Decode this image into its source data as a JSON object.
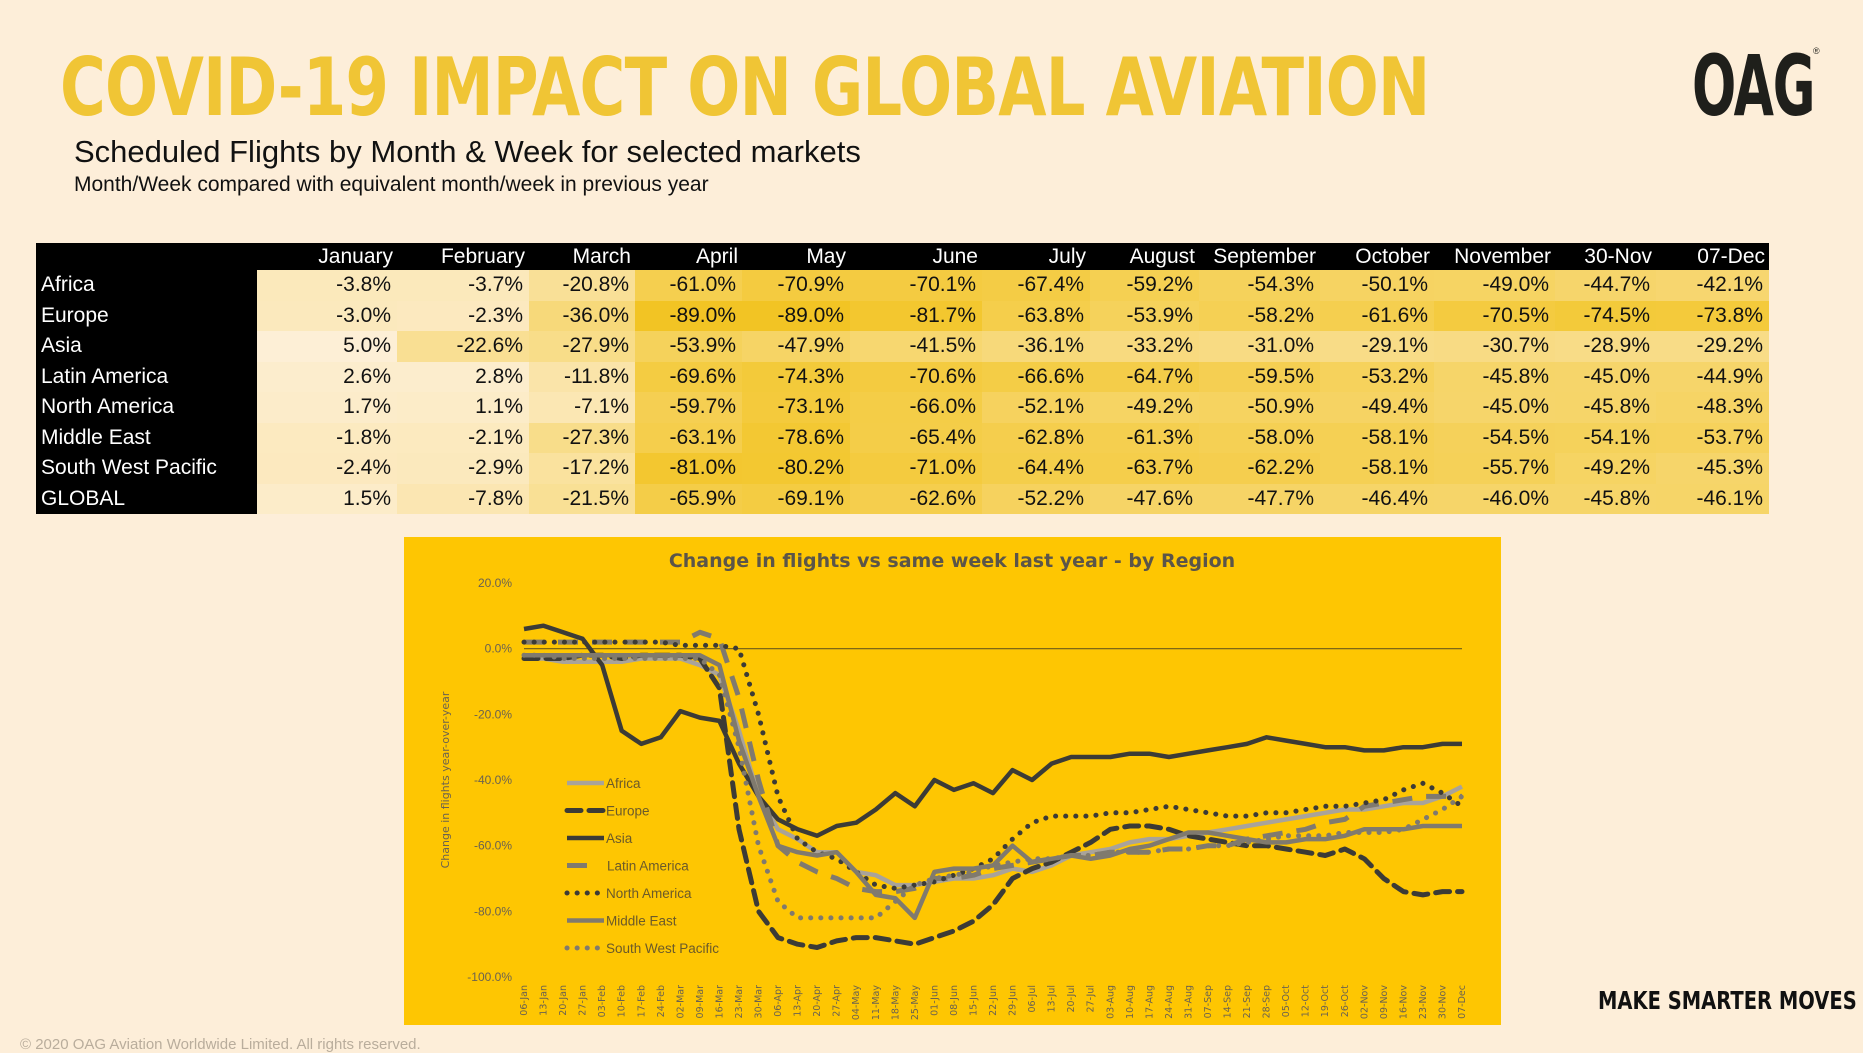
{
  "header": {
    "title": "COVID-19 IMPACT ON GLOBAL AVIATION",
    "subtitle": "Scheduled Flights by Month & Week for selected markets",
    "description": "Month/Week compared with equivalent month/week in previous year",
    "logo": "OAG",
    "logo_mark": "®"
  },
  "table": {
    "columns": [
      "January",
      "February",
      "March",
      "April",
      "May",
      "June",
      "July",
      "August",
      "September",
      "October",
      "November",
      "30-Nov",
      "07-Dec"
    ],
    "rows": [
      {
        "region": "Africa",
        "values": [
          "-3.8%",
          "-3.7%",
          "-20.8%",
          "-61.0%",
          "-70.9%",
          "-70.1%",
          "-67.4%",
          "-59.2%",
          "-54.3%",
          "-50.1%",
          "-49.0%",
          "-44.7%",
          "-42.1%"
        ]
      },
      {
        "region": "Europe",
        "values": [
          "-3.0%",
          "-2.3%",
          "-36.0%",
          "-89.0%",
          "-89.0%",
          "-81.7%",
          "-63.8%",
          "-53.9%",
          "-58.2%",
          "-61.6%",
          "-70.5%",
          "-74.5%",
          "-73.8%"
        ]
      },
      {
        "region": "Asia",
        "values": [
          "5.0%",
          "-22.6%",
          "-27.9%",
          "-53.9%",
          "-47.9%",
          "-41.5%",
          "-36.1%",
          "-33.2%",
          "-31.0%",
          "-29.1%",
          "-30.7%",
          "-28.9%",
          "-29.2%"
        ]
      },
      {
        "region": "Latin America",
        "values": [
          "2.6%",
          "2.8%",
          "-11.8%",
          "-69.6%",
          "-74.3%",
          "-70.6%",
          "-66.6%",
          "-64.7%",
          "-59.5%",
          "-53.2%",
          "-45.8%",
          "-45.0%",
          "-44.9%"
        ]
      },
      {
        "region": "North America",
        "values": [
          "1.7%",
          "1.1%",
          "-7.1%",
          "-59.7%",
          "-73.1%",
          "-66.0%",
          "-52.1%",
          "-49.2%",
          "-50.9%",
          "-49.4%",
          "-45.0%",
          "-45.8%",
          "-48.3%"
        ]
      },
      {
        "region": "Middle East",
        "values": [
          "-1.8%",
          "-2.1%",
          "-27.3%",
          "-63.1%",
          "-78.6%",
          "-65.4%",
          "-62.8%",
          "-61.3%",
          "-58.0%",
          "-58.1%",
          "-54.5%",
          "-54.1%",
          "-53.7%"
        ]
      },
      {
        "region": "South West Pacific",
        "values": [
          "-2.4%",
          "-2.9%",
          "-17.2%",
          "-81.0%",
          "-80.2%",
          "-71.0%",
          "-64.4%",
          "-63.7%",
          "-62.2%",
          "-58.1%",
          "-55.7%",
          "-49.2%",
          "-45.3%"
        ]
      },
      {
        "region": "GLOBAL",
        "values": [
          "1.5%",
          "-7.8%",
          "-21.5%",
          "-65.9%",
          "-69.1%",
          "-62.6%",
          "-52.2%",
          "-47.6%",
          "-47.7%",
          "-46.4%",
          "-46.0%",
          "-45.8%",
          "-46.1%"
        ]
      }
    ],
    "heat_colors": {
      "light": "#fdeacb",
      "dark": "#f2c526"
    }
  },
  "chart_data": {
    "type": "line",
    "title": "Change in flights vs same week last year - by Region",
    "xlabel": "",
    "ylabel": "Change in flights year-over-year",
    "ylim": [
      -100,
      20
    ],
    "yticks": [
      "20.0%",
      "0.0%",
      "-20.0%",
      "-40.0%",
      "-60.0%",
      "-80.0%",
      "-100.0%"
    ],
    "ytick_values": [
      20,
      0,
      -20,
      -40,
      -60,
      -80,
      -100
    ],
    "grid": false,
    "zero_line": true,
    "legend_position": "left-inside",
    "background": "#fec602",
    "x": [
      "06-Jan",
      "13-Jan",
      "20-Jan",
      "27-Jan",
      "03-Feb",
      "10-Feb",
      "17-Feb",
      "24-Feb",
      "02-Mar",
      "09-Mar",
      "16-Mar",
      "23-Mar",
      "30-Mar",
      "06-Apr",
      "13-Apr",
      "20-Apr",
      "27-Apr",
      "04-May",
      "11-May",
      "18-May",
      "25-May",
      "01-Jun",
      "08-Jun",
      "15-Jun",
      "22-Jun",
      "29-Jun",
      "06-Jul",
      "13-Jul",
      "20-Jul",
      "27-Jul",
      "03-Aug",
      "10-Aug",
      "17-Aug",
      "24-Aug",
      "31-Aug",
      "07-Sep",
      "14-Sep",
      "21-Sep",
      "28-Sep",
      "05-Oct",
      "12-Oct",
      "19-Oct",
      "26-Oct",
      "02-Nov",
      "09-Nov",
      "16-Nov",
      "23-Nov",
      "30-Nov",
      "07-Dec"
    ],
    "series": [
      {
        "name": "Africa",
        "style": "solid",
        "color": "#a9a39a",
        "values": [
          -3,
          -3,
          -4,
          -4,
          -4,
          -4,
          -3,
          -3,
          -3,
          -5,
          -8,
          -25,
          -45,
          -55,
          -58,
          -62,
          -62,
          -68,
          -69,
          -72,
          -72,
          -71,
          -70,
          -70,
          -69,
          -67,
          -68,
          -66,
          -63,
          -62,
          -61,
          -59,
          -58,
          -58,
          -57,
          -56,
          -55,
          -54,
          -53,
          -52,
          -51,
          -50,
          -49,
          -49,
          -48,
          -47,
          -47,
          -45,
          -42
        ]
      },
      {
        "name": "Europe",
        "style": "dashed",
        "color": "#3c3b36",
        "values": [
          -3,
          -3,
          -3,
          -2,
          -2,
          -3,
          -2,
          -2,
          -2,
          -3,
          -12,
          -55,
          -80,
          -88,
          -90,
          -91,
          -89,
          -88,
          -88,
          -89,
          -90,
          -88,
          -86,
          -83,
          -78,
          -70,
          -67,
          -65,
          -62,
          -59,
          -55,
          -54,
          -54,
          -55,
          -57,
          -58,
          -59,
          -60,
          -60,
          -61,
          -62,
          -63,
          -61,
          -64,
          -70,
          -74,
          -75,
          -74,
          -74
        ]
      },
      {
        "name": "Asia",
        "style": "solid",
        "color": "#3c3b36",
        "values": [
          6,
          7,
          5,
          3,
          -5,
          -25,
          -29,
          -27,
          -19,
          -21,
          -22,
          -35,
          -45,
          -52,
          -55,
          -57,
          -54,
          -53,
          -49,
          -44,
          -48,
          -40,
          -43,
          -41,
          -44,
          -37,
          -40,
          -35,
          -33,
          -33,
          -33,
          -32,
          -32,
          -33,
          -32,
          -31,
          -30,
          -29,
          -27,
          -28,
          -29,
          -30,
          -30,
          -31,
          -31,
          -30,
          -30,
          -29,
          -29
        ]
      },
      {
        "name": "Latin America",
        "style": "longdash",
        "color": "#807a6e",
        "values": [
          2,
          2,
          2,
          2,
          2,
          2,
          2,
          2,
          2,
          5,
          3,
          -15,
          -40,
          -60,
          -65,
          -68,
          -70,
          -73,
          -74,
          -74,
          -73,
          -70,
          -70,
          -69,
          -67,
          -66,
          -65,
          -64,
          -63,
          -63,
          -62,
          -62,
          -62,
          -61,
          -61,
          -60,
          -60,
          -58,
          -57,
          -56,
          -55,
          -53,
          -52,
          -48,
          -47,
          -46,
          -45,
          -45,
          -45
        ]
      },
      {
        "name": "North America",
        "style": "dotted",
        "color": "#3c3b36",
        "values": [
          2,
          2,
          2,
          2,
          2,
          2,
          2,
          2,
          1,
          1,
          1,
          0,
          -20,
          -45,
          -58,
          -62,
          -64,
          -68,
          -72,
          -73,
          -72,
          -71,
          -69,
          -67,
          -64,
          -58,
          -53,
          -51,
          -51,
          -51,
          -50,
          -50,
          -49,
          -48,
          -49,
          -50,
          -51,
          -51,
          -50,
          -50,
          -49,
          -48,
          -48,
          -47,
          -46,
          -43,
          -41,
          -44,
          -48
        ]
      },
      {
        "name": "Middle East",
        "style": "solid",
        "color": "#807a6e",
        "values": [
          -2,
          -2,
          -2,
          -2,
          -2,
          -2,
          -2,
          -2,
          -2,
          -2,
          -5,
          -28,
          -45,
          -60,
          -62,
          -63,
          -62,
          -68,
          -75,
          -76,
          -82,
          -68,
          -67,
          -67,
          -66,
          -60,
          -65,
          -64,
          -63,
          -64,
          -63,
          -61,
          -60,
          -58,
          -56,
          -56,
          -57,
          -58,
          -59,
          -59,
          -58,
          -58,
          -57,
          -55,
          -55,
          -55,
          -54,
          -54,
          -54
        ]
      },
      {
        "name": "South West Pacific",
        "style": "dotted-light",
        "color": "#807a6e",
        "values": [
          -2,
          -2,
          -3,
          -3,
          -3,
          -3,
          -3,
          -3,
          -3,
          -3,
          -8,
          -30,
          -60,
          -77,
          -82,
          -82,
          -82,
          -82,
          -82,
          -77,
          -72,
          -70,
          -69,
          -68,
          -66,
          -65,
          -64,
          -64,
          -63,
          -63,
          -62,
          -62,
          -62,
          -61,
          -61,
          -60,
          -60,
          -59,
          -58,
          -57,
          -57,
          -57,
          -56,
          -56,
          -56,
          -55,
          -52,
          -49,
          -45
        ]
      }
    ]
  },
  "footer": {
    "tagline": "MAKE SMARTER MOVES",
    "copyright": "© 2020 OAG Aviation Worldwide Limited. All rights reserved."
  }
}
